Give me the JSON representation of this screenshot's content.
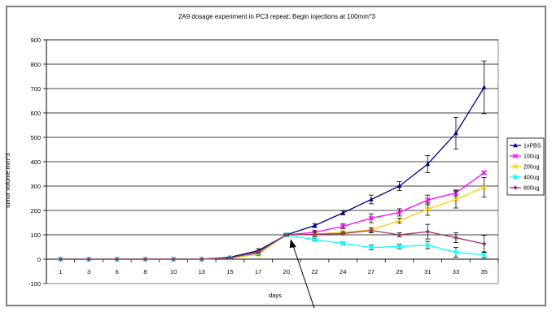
{
  "chart_data": {
    "type": "line",
    "title": "2A9 dosage experiment in PC3 repeat: Begin injections at 100mm^3",
    "xlabel": "days",
    "ylabel": "tumor volume mm^3",
    "ylim": [
      -100,
      900
    ],
    "yticks": [
      -100,
      0,
      100,
      200,
      300,
      400,
      500,
      600,
      700,
      800,
      900
    ],
    "categories": [
      "1",
      "3",
      "6",
      "8",
      "10",
      "13",
      "15",
      "17",
      "20",
      "22",
      "24",
      "27",
      "29",
      "31",
      "33",
      "35"
    ],
    "grid": "horizontal",
    "legend_position": "right",
    "series": [
      {
        "name": "1xPBS",
        "color": "#000080",
        "marker": "triangle",
        "values": [
          0,
          0,
          0,
          0,
          0,
          0,
          8,
          35,
          100,
          138,
          190,
          245,
          300,
          390,
          517,
          705
        ],
        "errors": [
          0,
          0,
          0,
          0,
          0,
          0,
          3,
          8,
          5,
          8,
          8,
          18,
          18,
          35,
          65,
          108
        ]
      },
      {
        "name": "100ug",
        "color": "#ff00ff",
        "marker": "x",
        "values": [
          0,
          0,
          0,
          0,
          0,
          0,
          5,
          25,
          100,
          110,
          135,
          168,
          192,
          243,
          272,
          355
        ],
        "errors": [
          0,
          0,
          0,
          0,
          0,
          0,
          2,
          5,
          3,
          8,
          10,
          18,
          15,
          20,
          12,
          5
        ]
      },
      {
        "name": "200ug",
        "color": "#ffcc00",
        "marker": "x",
        "values": [
          0,
          0,
          0,
          0,
          0,
          0,
          4,
          20,
          100,
          103,
          110,
          120,
          158,
          205,
          245,
          295
        ],
        "errors": [
          0,
          0,
          0,
          0,
          0,
          0,
          2,
          5,
          3,
          6,
          6,
          8,
          10,
          25,
          35,
          40
        ]
      },
      {
        "name": "400ug",
        "color": "#00ffff",
        "marker": "asterisk",
        "values": [
          0,
          0,
          0,
          0,
          0,
          0,
          5,
          28,
          100,
          80,
          65,
          48,
          52,
          58,
          28,
          18
        ],
        "errors": [
          0,
          0,
          0,
          0,
          0,
          0,
          2,
          5,
          3,
          5,
          5,
          10,
          10,
          15,
          20,
          12
        ]
      },
      {
        "name": "800ug",
        "color": "#993366",
        "marker": "diamond",
        "values": [
          0,
          0,
          0,
          0,
          0,
          0,
          5,
          30,
          100,
          102,
          105,
          118,
          100,
          113,
          88,
          63
        ],
        "errors": [
          0,
          0,
          0,
          0,
          0,
          0,
          2,
          5,
          3,
          10,
          5,
          10,
          8,
          30,
          20,
          35
        ]
      }
    ]
  }
}
